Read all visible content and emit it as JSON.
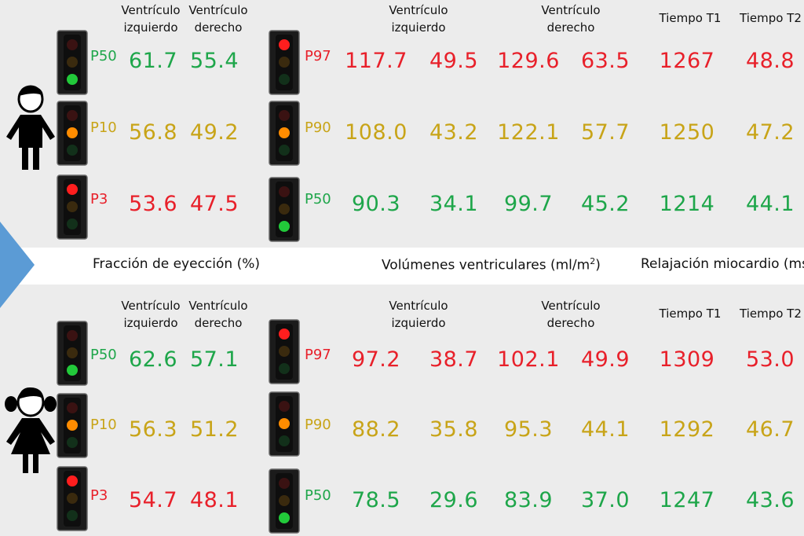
{
  "colors": {
    "red": "#e8202a",
    "orange": "#c8a418",
    "green": "#1ea64a"
  },
  "headers": {
    "lv": [
      "Ventrículo",
      "izquierdo"
    ],
    "rv": [
      "Ventrículo",
      "derecho"
    ],
    "t1": "Tiempo T1",
    "t2": "Tiempo T2"
  },
  "section_titles": {
    "ef": "Fracción de eyección (%)",
    "vol": "Volúmenes ventriculares (ml/m",
    "vol_sup": "2",
    "vol_close": ")",
    "relax": "Relajación miocardio (ms"
  },
  "groups": [
    {
      "figure": "boy-icon",
      "ef_rows": [
        {
          "light": "green",
          "percentile": "P50",
          "lv": "61.7",
          "rv": "55.4"
        },
        {
          "light": "orange",
          "percentile": "P10",
          "lv": "56.8",
          "rv": "49.2"
        },
        {
          "light": "red",
          "percentile": "P3",
          "lv": "53.6",
          "rv": "47.5"
        }
      ],
      "vol_rows": [
        {
          "light": "red",
          "percentile": "P97",
          "lv_edv": "117.7",
          "lv_esv": "49.5",
          "rv_edv": "129.6",
          "rv_esv": "63.5",
          "t1": "1267",
          "t2": "48.8"
        },
        {
          "light": "orange",
          "percentile": "P90",
          "lv_edv": "108.0",
          "lv_esv": "43.2",
          "rv_edv": "122.1",
          "rv_esv": "57.7",
          "t1": "1250",
          "t2": "47.2"
        },
        {
          "light": "green",
          "percentile": "P50",
          "lv_edv": "90.3",
          "lv_esv": "34.1",
          "rv_edv": "99.7",
          "rv_esv": "45.2",
          "t1": "1214",
          "t2": "44.1"
        }
      ]
    },
    {
      "figure": "girl-icon",
      "ef_rows": [
        {
          "light": "green",
          "percentile": "P50",
          "lv": "62.6",
          "rv": "57.1"
        },
        {
          "light": "orange",
          "percentile": "P10",
          "lv": "56.3",
          "rv": "51.2"
        },
        {
          "light": "red",
          "percentile": "P3",
          "lv": "54.7",
          "rv": "48.1"
        }
      ],
      "vol_rows": [
        {
          "light": "red",
          "percentile": "P97",
          "lv_edv": "97.2",
          "lv_esv": "38.7",
          "rv_edv": "102.1",
          "rv_esv": "49.9",
          "t1": "1309",
          "t2": "53.0"
        },
        {
          "light": "orange",
          "percentile": "P90",
          "lv_edv": "88.2",
          "lv_esv": "35.8",
          "rv_edv": "95.3",
          "rv_esv": "44.1",
          "t1": "1292",
          "t2": "46.7"
        },
        {
          "light": "green",
          "percentile": "P50",
          "lv_edv": "78.5",
          "lv_esv": "29.6",
          "rv_edv": "83.9",
          "rv_esv": "37.0",
          "t1": "1247",
          "t2": "43.6"
        }
      ]
    }
  ]
}
